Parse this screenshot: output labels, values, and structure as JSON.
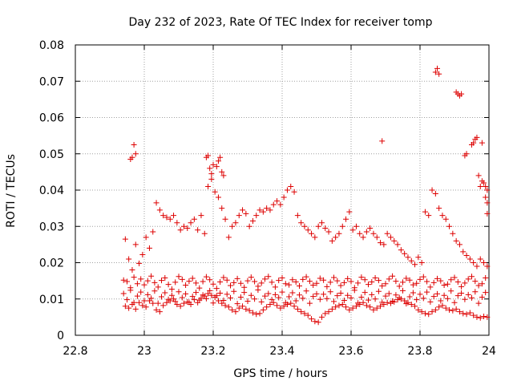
{
  "chart_data": {
    "type": "scatter",
    "title": "Day 232 of 2023, Rate Of TEC Index for receiver tomp",
    "xlabel": "GPS time / hours",
    "ylabel": "ROTI / TECUs",
    "xlim": [
      22.8,
      24
    ],
    "ylim": [
      0,
      0.08
    ],
    "xticks": [
      "22.8",
      "23",
      "23.2",
      "23.4",
      "23.6",
      "23.8",
      "24"
    ],
    "yticks": [
      "0",
      "0.01",
      "0.02",
      "0.03",
      "0.04",
      "0.05",
      "0.06",
      "0.07",
      "0.08"
    ],
    "grid": true,
    "marker": "+",
    "color": "#dd0000",
    "series": [
      {
        "x": [
          22.94,
          22.95,
          22.96,
          22.97,
          22.98,
          22.99,
          23.0,
          23.01,
          23.02,
          23.03,
          23.04,
          23.05,
          23.06,
          23.07,
          23.08,
          23.09,
          23.1,
          23.11,
          23.12,
          23.13,
          23.14,
          23.15,
          23.16,
          23.17,
          23.18,
          23.19,
          23.2,
          23.21,
          23.22,
          23.23,
          23.24,
          23.25,
          23.26,
          23.27,
          23.28,
          23.29,
          23.3,
          23.31,
          23.32,
          23.33,
          23.34,
          23.35,
          23.36,
          23.37,
          23.38,
          23.39,
          23.4,
          23.41,
          23.42,
          23.43,
          23.44,
          23.45,
          23.46,
          23.47,
          23.48,
          23.49,
          23.5,
          23.51,
          23.52,
          23.53,
          23.54,
          23.55,
          23.56,
          23.57,
          23.58,
          23.59,
          23.6,
          23.61,
          23.62,
          23.63,
          23.64,
          23.65,
          23.66,
          23.67,
          23.68,
          23.69,
          23.7,
          23.71,
          23.72,
          23.73,
          23.74,
          23.75,
          23.76,
          23.77,
          23.78,
          23.79,
          23.8,
          23.81,
          23.82,
          23.83,
          23.84,
          23.85,
          23.86,
          23.87,
          23.88,
          23.89,
          23.9,
          23.91,
          23.92,
          23.93,
          23.94,
          23.95,
          23.96,
          23.97,
          23.98,
          23.99,
          22.94,
          22.95,
          22.96,
          22.97,
          22.98,
          22.99,
          23.0,
          23.01,
          23.02,
          23.03,
          23.04,
          23.05,
          23.06,
          23.07,
          23.08,
          23.09,
          23.1,
          23.11,
          23.12,
          23.13,
          23.14,
          23.15,
          23.16,
          23.17,
          23.18,
          23.19,
          23.2,
          23.21,
          23.22,
          23.23,
          23.24,
          23.25,
          23.26,
          23.27,
          23.28,
          23.29,
          23.3,
          23.31,
          23.32,
          23.33,
          23.34,
          23.35,
          23.36,
          23.37,
          23.38,
          23.39,
          23.4,
          23.41,
          23.42,
          23.43,
          23.44,
          23.45,
          23.46,
          23.47,
          23.48,
          23.49,
          23.5,
          23.51,
          23.52,
          23.53,
          23.54,
          23.55,
          23.56,
          23.57,
          23.58,
          23.59,
          23.6,
          23.61,
          23.62,
          23.63,
          23.64,
          23.65,
          23.66,
          23.67,
          23.68,
          23.69,
          23.7,
          23.71,
          23.72,
          23.73,
          23.74,
          23.75,
          23.76,
          23.77,
          23.78,
          23.79,
          23.8,
          23.81,
          23.82,
          23.83,
          23.84,
          23.85,
          23.86,
          23.87,
          23.88,
          23.89,
          23.9,
          23.91,
          23.92,
          23.93,
          23.94,
          23.95,
          23.96,
          23.97,
          23.98,
          23.99,
          22.945,
          22.955,
          22.965,
          22.975,
          22.985,
          22.995,
          23.005,
          23.015,
          23.025,
          23.035,
          23.045,
          23.055,
          23.065,
          23.075,
          23.085,
          23.095,
          23.105,
          23.115,
          23.125,
          23.135,
          23.145,
          23.155,
          23.165,
          23.175,
          23.185,
          23.195,
          23.205,
          23.215,
          23.225,
          23.235,
          23.245,
          23.255,
          23.265,
          23.275,
          23.285,
          23.295,
          23.305,
          23.315,
          23.325,
          23.335,
          23.345,
          23.355,
          23.365,
          23.375,
          23.385,
          23.395,
          23.405,
          23.415,
          23.425,
          23.435,
          23.445,
          23.455,
          23.465,
          23.475,
          23.485,
          23.495,
          23.505,
          23.515,
          23.525,
          23.535,
          23.545,
          23.555,
          23.565,
          23.575,
          23.585,
          23.595,
          23.605,
          23.615,
          23.625,
          23.635,
          23.645,
          23.655,
          23.665,
          23.675,
          23.685,
          23.695,
          23.705,
          23.715,
          23.725,
          23.735,
          23.745,
          23.755,
          23.765,
          23.775,
          23.785,
          23.795,
          23.805,
          23.815,
          23.825,
          23.835,
          23.845,
          23.855,
          23.865,
          23.875,
          23.885,
          23.895,
          23.905,
          23.915,
          23.925,
          23.935,
          23.945,
          23.955,
          23.965,
          23.975,
          23.985,
          23.995,
          22.945,
          22.955,
          22.965,
          22.975,
          22.985,
          22.995,
          23.005,
          23.015,
          23.025,
          23.035,
          23.045,
          23.055,
          23.065,
          23.075,
          23.085,
          23.095,
          23.105,
          23.115,
          23.125,
          23.135,
          23.145,
          23.155,
          23.165,
          23.175,
          23.185,
          23.195,
          23.205,
          23.215,
          23.225,
          23.235,
          23.245,
          23.255,
          23.265,
          23.275,
          23.285,
          23.295,
          23.305,
          23.315,
          23.325,
          23.335,
          23.345,
          23.355,
          23.365,
          23.375,
          23.385,
          23.395,
          23.405,
          23.415,
          23.425,
          23.435,
          23.445,
          23.455,
          23.465,
          23.475,
          23.485,
          23.495,
          23.505,
          23.515,
          23.525,
          23.535,
          23.545,
          23.555,
          23.565,
          23.575,
          23.585,
          23.595,
          23.605,
          23.615,
          23.625,
          23.635,
          23.645,
          23.655,
          23.665,
          23.675,
          23.685,
          23.695,
          23.705,
          23.715,
          23.725,
          23.735,
          23.745,
          23.755,
          23.765,
          23.775,
          23.785,
          23.795,
          23.805,
          23.815,
          23.825,
          23.835,
          23.845,
          23.855,
          23.865,
          23.875,
          23.885,
          23.895,
          23.905,
          23.915,
          23.925,
          23.935,
          23.945,
          23.955,
          23.965,
          23.975,
          23.985,
          23.995,
          22.96,
          22.965,
          22.97,
          22.975,
          23.18,
          23.185,
          23.19,
          23.195,
          23.2,
          23.21,
          23.215,
          23.22,
          23.225,
          23.23,
          23.69,
          23.845,
          23.85,
          23.855,
          23.905,
          23.91,
          23.915,
          23.92,
          23.93,
          23.935,
          23.95,
          23.955,
          23.96,
          23.965,
          23.97,
          23.975,
          23.98,
          23.985,
          23.99,
          23.995,
          23.98,
          23.99,
          23.995,
          23.995
        ],
        "y": [
          0.0152,
          0.0148,
          0.0131,
          0.016,
          0.0142,
          0.0155,
          0.0139,
          0.015,
          0.0163,
          0.0145,
          0.0133,
          0.0151,
          0.0158,
          0.014,
          0.0127,
          0.0146,
          0.0162,
          0.0154,
          0.0138,
          0.0149,
          0.0157,
          0.0144,
          0.013,
          0.0148,
          0.0161,
          0.0153,
          0.0141,
          0.0129,
          0.0147,
          0.0159,
          0.0152,
          0.0137,
          0.0145,
          0.0156,
          0.0143,
          0.0132,
          0.015,
          0.016,
          0.0148,
          0.0135,
          0.0144,
          0.0155,
          0.0162,
          0.0146,
          0.0133,
          0.0151,
          0.0158,
          0.0142,
          0.0139,
          0.0153,
          0.0147,
          0.0136,
          0.0154,
          0.0161,
          0.0149,
          0.0138,
          0.0143,
          0.0157,
          0.0152,
          0.0134,
          0.0146,
          0.0159,
          0.015,
          0.0137,
          0.0145,
          0.0156,
          0.0148,
          0.0131,
          0.0144,
          0.016,
          0.0153,
          0.014,
          0.0147,
          0.0158,
          0.0151,
          0.0136,
          0.0142,
          0.0155,
          0.0163,
          0.0149,
          0.0135,
          0.0146,
          0.0157,
          0.0152,
          0.0139,
          0.0143,
          0.0154,
          0.0161,
          0.0148,
          0.0133,
          0.0145,
          0.0156,
          0.015,
          0.0138,
          0.0141,
          0.0153,
          0.0159,
          0.0147,
          0.0134,
          0.0144,
          0.0155,
          0.0162,
          0.0149,
          0.0137,
          0.0142,
          0.0158,
          0.0115,
          0.0098,
          0.0124,
          0.009,
          0.0108,
          0.0119,
          0.0095,
          0.0112,
          0.0102,
          0.0122,
          0.0088,
          0.0106,
          0.0117,
          0.0099,
          0.011,
          0.0093,
          0.012,
          0.0104,
          0.0114,
          0.0091,
          0.0107,
          0.0118,
          0.0097,
          0.0111,
          0.0101,
          0.0123,
          0.0089,
          0.0109,
          0.0116,
          0.0096,
          0.0113,
          0.0103,
          0.0121,
          0.0087,
          0.0105,
          0.0118,
          0.0094,
          0.011,
          0.01,
          0.0125,
          0.0092,
          0.0108,
          0.0115,
          0.0098,
          0.0112,
          0.0104,
          0.0119,
          0.009,
          0.0106,
          0.0117,
          0.0095,
          0.0111,
          0.0102,
          0.0122,
          0.0088,
          0.0107,
          0.0114,
          0.0099,
          0.0113,
          0.0101,
          0.012,
          0.0093,
          0.0109,
          0.0116,
          0.0096,
          0.011,
          0.0103,
          0.0124,
          0.0089,
          0.0105,
          0.0118,
          0.0097,
          0.0112,
          0.01,
          0.0121,
          0.0091,
          0.0108,
          0.0115,
          0.0094,
          0.0111,
          0.0104,
          0.0123,
          0.0087,
          0.0106,
          0.0117,
          0.0098,
          0.0113,
          0.0102,
          0.0119,
          0.0092,
          0.0107,
          0.0114,
          0.0095,
          0.011,
          0.0101,
          0.0122,
          0.009,
          0.0109,
          0.0116,
          0.0099,
          0.0112,
          0.0103,
          0.012,
          0.0088,
          0.0105,
          0.0118,
          0.0265,
          0.021,
          0.018,
          0.025,
          0.0198,
          0.0222,
          0.027,
          0.024,
          0.0285,
          0.0365,
          0.0345,
          0.033,
          0.0325,
          0.032,
          0.033,
          0.031,
          0.029,
          0.03,
          0.0295,
          0.031,
          0.032,
          0.029,
          0.033,
          0.028,
          0.041,
          0.043,
          0.0395,
          0.038,
          0.035,
          0.032,
          0.027,
          0.03,
          0.031,
          0.033,
          0.0345,
          0.0335,
          0.03,
          0.0315,
          0.033,
          0.0345,
          0.034,
          0.035,
          0.0345,
          0.036,
          0.037,
          0.036,
          0.038,
          0.04,
          0.041,
          0.0395,
          0.033,
          0.031,
          0.03,
          0.029,
          0.028,
          0.027,
          0.03,
          0.031,
          0.0295,
          0.0285,
          0.026,
          0.027,
          0.028,
          0.03,
          0.032,
          0.034,
          0.029,
          0.03,
          0.028,
          0.027,
          0.0285,
          0.0295,
          0.028,
          0.027,
          0.0255,
          0.025,
          0.028,
          0.027,
          0.026,
          0.025,
          0.0235,
          0.0225,
          0.0215,
          0.0205,
          0.0195,
          0.0215,
          0.02,
          0.034,
          0.033,
          0.04,
          0.039,
          0.035,
          0.033,
          0.032,
          0.03,
          0.028,
          0.026,
          0.025,
          0.023,
          0.022,
          0.021,
          0.02,
          0.019,
          0.021,
          0.02,
          0.019,
          0.008,
          0.0075,
          0.0085,
          0.0072,
          0.009,
          0.0082,
          0.0078,
          0.0095,
          0.0088,
          0.007,
          0.0065,
          0.0082,
          0.009,
          0.0095,
          0.01,
          0.0085,
          0.008,
          0.0088,
          0.0092,
          0.0085,
          0.0098,
          0.009,
          0.0102,
          0.0108,
          0.0115,
          0.011,
          0.0105,
          0.0095,
          0.0088,
          0.0082,
          0.0078,
          0.007,
          0.0065,
          0.0075,
          0.008,
          0.0072,
          0.0068,
          0.0062,
          0.0058,
          0.006,
          0.007,
          0.0078,
          0.0085,
          0.009,
          0.0082,
          0.0075,
          0.008,
          0.0085,
          0.0088,
          0.008,
          0.0072,
          0.0065,
          0.006,
          0.0055,
          0.0045,
          0.0038,
          0.0036,
          0.005,
          0.006,
          0.0065,
          0.0072,
          0.0078,
          0.0082,
          0.0085,
          0.0078,
          0.007,
          0.0075,
          0.008,
          0.0085,
          0.009,
          0.0082,
          0.0078,
          0.007,
          0.0075,
          0.008,
          0.0085,
          0.009,
          0.0088,
          0.0092,
          0.0098,
          0.01,
          0.0095,
          0.009,
          0.0085,
          0.008,
          0.007,
          0.0065,
          0.006,
          0.0058,
          0.0065,
          0.007,
          0.0078,
          0.0082,
          0.0075,
          0.007,
          0.0068,
          0.0072,
          0.0065,
          0.006,
          0.0058,
          0.0062,
          0.0055,
          0.005,
          0.0048,
          0.0052,
          0.005,
          0.0485,
          0.049,
          0.0525,
          0.05,
          0.049,
          0.0495,
          0.046,
          0.0445,
          0.047,
          0.0465,
          0.048,
          0.049,
          0.045,
          0.044,
          0.0535,
          0.0725,
          0.0735,
          0.072,
          0.067,
          0.0665,
          0.066,
          0.0665,
          0.0495,
          0.05,
          0.0525,
          0.053,
          0.054,
          0.0545,
          0.044,
          0.041,
          0.053,
          0.042,
          0.041,
          0.04,
          0.0425,
          0.038,
          0.0335,
          0.0365
        ]
      }
    ]
  }
}
